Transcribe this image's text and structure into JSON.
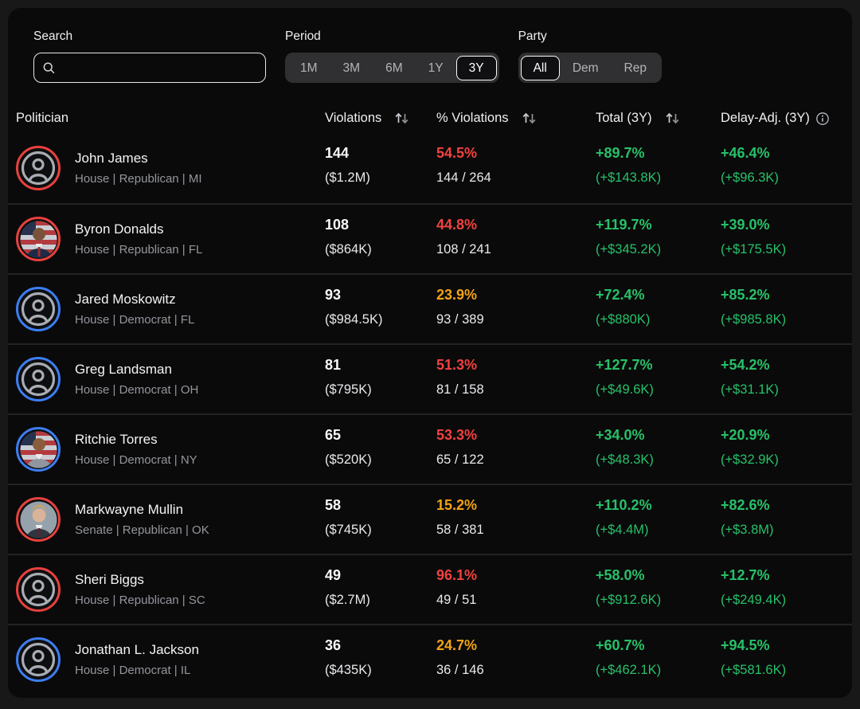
{
  "controls": {
    "search": {
      "label": "Search",
      "placeholder": "",
      "value": ""
    },
    "period": {
      "label": "Period",
      "options": [
        "1M",
        "3M",
        "6M",
        "1Y",
        "3Y"
      ],
      "selected": "3Y"
    },
    "party": {
      "label": "Party",
      "options": [
        "All",
        "Dem",
        "Rep"
      ],
      "selected": "All"
    }
  },
  "table": {
    "headers": {
      "politician": "Politician",
      "violations": "Violations",
      "pct_violations": "% Violations",
      "total": "Total (3Y)",
      "delay_adj": "Delay-Adj. (3Y)"
    },
    "rows": [
      {
        "name": "John James",
        "meta": "House | Republican | MI",
        "party": "rep",
        "avatar": "placeholder",
        "violations": "144",
        "violations_amount": "($1.2M)",
        "pct": "54.5%",
        "pct_color": "red",
        "fraction": "144 / 264",
        "total": "+89.7%",
        "total_amount": "(+$143.8K)",
        "delay": "+46.4%",
        "delay_amount": "(+$96.3K)"
      },
      {
        "name": "Byron Donalds",
        "meta": "House | Republican | FL",
        "party": "rep",
        "avatar": "photo-flag",
        "violations": "108",
        "violations_amount": "($864K)",
        "pct": "44.8%",
        "pct_color": "red",
        "fraction": "108 / 241",
        "total": "+119.7%",
        "total_amount": "(+$345.2K)",
        "delay": "+39.0%",
        "delay_amount": "(+$175.5K)"
      },
      {
        "name": "Jared Moskowitz",
        "meta": "House | Democrat | FL",
        "party": "dem",
        "avatar": "placeholder",
        "violations": "93",
        "violations_amount": "($984.5K)",
        "pct": "23.9%",
        "pct_color": "orange",
        "fraction": "93 / 389",
        "total": "+72.4%",
        "total_amount": "(+$880K)",
        "delay": "+85.2%",
        "delay_amount": "(+$985.8K)"
      },
      {
        "name": "Greg Landsman",
        "meta": "House | Democrat | OH",
        "party": "dem",
        "avatar": "placeholder",
        "violations": "81",
        "violations_amount": "($795K)",
        "pct": "51.3%",
        "pct_color": "red",
        "fraction": "81 / 158",
        "total": "+127.7%",
        "total_amount": "(+$49.6K)",
        "delay": "+54.2%",
        "delay_amount": "(+$31.1K)"
      },
      {
        "name": "Ritchie Torres",
        "meta": "House | Democrat | NY",
        "party": "dem",
        "avatar": "photo-flag",
        "violations": "65",
        "violations_amount": "($520K)",
        "pct": "53.3%",
        "pct_color": "red",
        "fraction": "65 / 122",
        "total": "+34.0%",
        "total_amount": "(+$48.3K)",
        "delay": "+20.9%",
        "delay_amount": "(+$32.9K)"
      },
      {
        "name": "Markwayne Mullin",
        "meta": "Senate | Republican | OK",
        "party": "rep",
        "avatar": "photo-plain",
        "violations": "58",
        "violations_amount": "($745K)",
        "pct": "15.2%",
        "pct_color": "orange",
        "fraction": "58 / 381",
        "total": "+110.2%",
        "total_amount": "(+$4.4M)",
        "delay": "+82.6%",
        "delay_amount": "(+$3.8M)"
      },
      {
        "name": "Sheri Biggs",
        "meta": "House | Republican | SC",
        "party": "rep",
        "avatar": "placeholder",
        "violations": "49",
        "violations_amount": "($2.7M)",
        "pct": "96.1%",
        "pct_color": "red",
        "fraction": "49 / 51",
        "total": "+58.0%",
        "total_amount": "(+$912.6K)",
        "delay": "+12.7%",
        "delay_amount": "(+$249.4K)"
      },
      {
        "name": "Jonathan L. Jackson",
        "meta": "House | Democrat | IL",
        "party": "dem",
        "avatar": "placeholder",
        "violations": "36",
        "violations_amount": "($435K)",
        "pct": "24.7%",
        "pct_color": "orange",
        "fraction": "36 / 146",
        "total": "+60.7%",
        "total_amount": "(+$462.1K)",
        "delay": "+94.5%",
        "delay_amount": "(+$581.6K)"
      }
    ]
  },
  "icons": {
    "search": "search-icon",
    "sort": "sort-arrows-icon",
    "info": "info-icon"
  },
  "colors": {
    "positive_green": "#27c168",
    "negative_red": "#f2423e",
    "warning_orange": "#f2a313",
    "republican_ring": "#e8413d",
    "democrat_ring": "#3d7ef2"
  }
}
